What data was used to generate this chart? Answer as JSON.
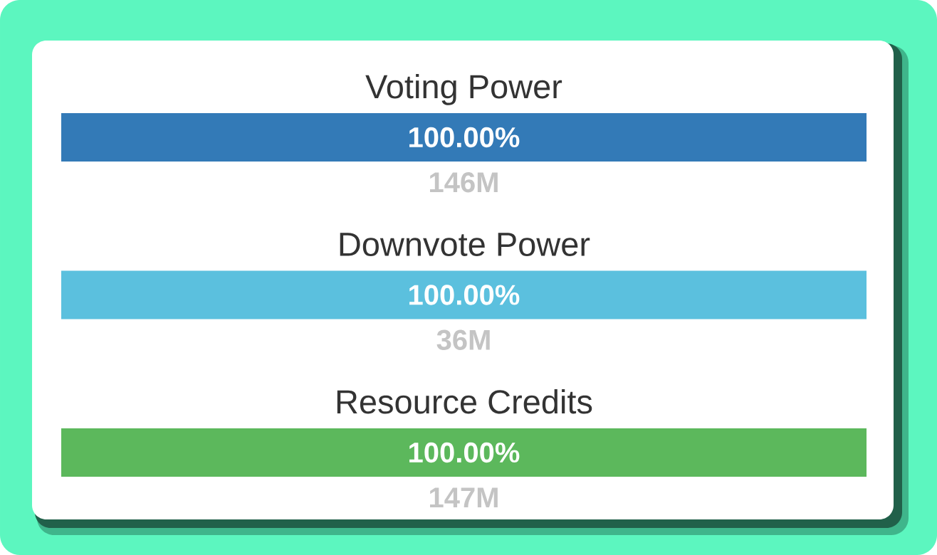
{
  "chart_data": {
    "type": "other",
    "categories": [
      "Voting Power",
      "Downvote Power",
      "Resource Credits"
    ],
    "values": [
      100,
      100,
      100
    ],
    "colors": [
      "#337ab7",
      "#5bc0de",
      "#5cb85c"
    ],
    "value_labels": [
      "100.00%",
      "100.00%",
      "100.00%"
    ],
    "annotations": [
      "146M",
      "36M",
      "147M"
    ]
  }
}
